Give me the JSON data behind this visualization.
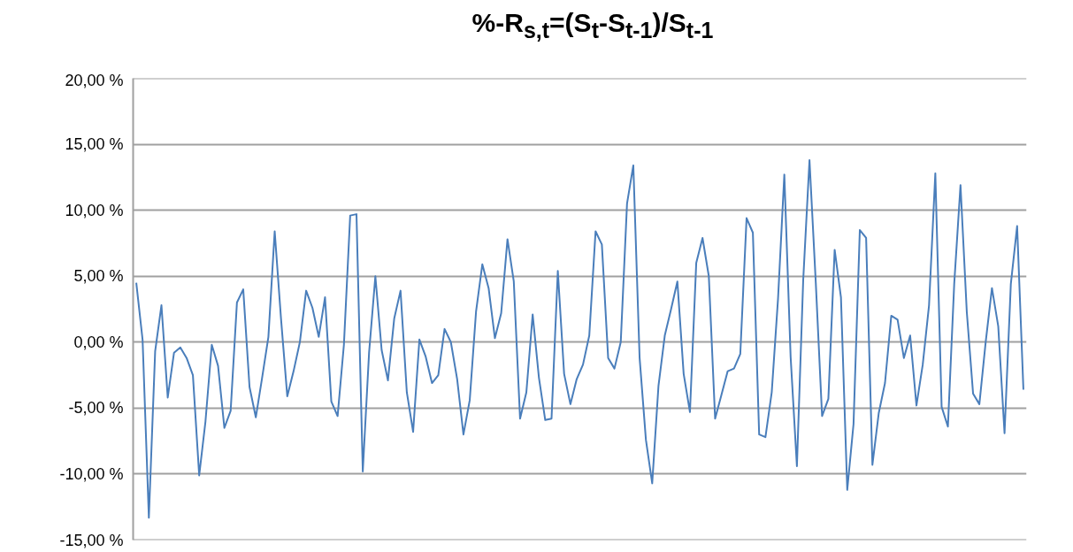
{
  "chart_data": {
    "type": "line",
    "title": "%-R$_{s,t}$=(S$_{t}$-S$_{t-1}$)/S$_{t-1}$",
    "categories": [
      null,
      null,
      null,
      null,
      null,
      null,
      null,
      null,
      null,
      null,
      null,
      null,
      null,
      null,
      null,
      null,
      null,
      null,
      null,
      null,
      null,
      null,
      null,
      null,
      null,
      null,
      null,
      null,
      null,
      null,
      null,
      null,
      null,
      null,
      null,
      null,
      null,
      null,
      null,
      null,
      null,
      null,
      null,
      null,
      null,
      null,
      null,
      null,
      null,
      null,
      null,
      null,
      null,
      null,
      null,
      null,
      null,
      null,
      null,
      null,
      null,
      null,
      null,
      null,
      null,
      null,
      null,
      null,
      null,
      null,
      null,
      null,
      null,
      null,
      null,
      null,
      null,
      null,
      null,
      null,
      null,
      null,
      null,
      null,
      null,
      null,
      null,
      null,
      null,
      null,
      null,
      null,
      null,
      null,
      null,
      null,
      null,
      null,
      null,
      null,
      null,
      null,
      null,
      null,
      null,
      null,
      null,
      null,
      null,
      null,
      null,
      null,
      null,
      null,
      null,
      null,
      null,
      null,
      null,
      null,
      null,
      null,
      null,
      null,
      null,
      null,
      null,
      null,
      null,
      null,
      null,
      null,
      null,
      null,
      null,
      null,
      null,
      null,
      null,
      null,
      null,
      null
    ],
    "series": [
      {
        "color": "#4a7ebb",
        "values": [
          4.5,
          0.2,
          -13.3,
          -0.7,
          2.8,
          -4.2,
          -0.8,
          -0.4,
          -1.2,
          -2.5,
          -10.1,
          -6.0,
          -0.2,
          -1.8,
          -6.5,
          -5.2,
          3.0,
          4.0,
          -3.4,
          -5.7,
          -2.7,
          0.4,
          8.4,
          1.8,
          -4.1,
          -2.2,
          0.0,
          3.9,
          2.6,
          0.4,
          3.4,
          -4.5,
          -5.6,
          -0.2,
          9.6,
          9.7,
          -9.8,
          -0.8,
          5.0,
          -0.6,
          -2.9,
          1.8,
          3.9,
          -3.8,
          -6.8,
          0.2,
          -1.1,
          -3.1,
          -2.5,
          1.0,
          0.0,
          -2.8,
          -7.0,
          -4.4,
          2.3,
          5.9,
          4.1,
          0.3,
          2.2,
          7.8,
          4.6,
          -5.8,
          -3.8,
          2.1,
          -2.7,
          -5.9,
          -5.8,
          5.4,
          -2.4,
          -4.7,
          -2.8,
          -1.7,
          0.5,
          8.4,
          7.4,
          -1.2,
          -2.0,
          0.0,
          10.5,
          13.4,
          -1.2,
          -7.4,
          -10.7,
          -3.3,
          0.5,
          2.5,
          4.6,
          -2.4,
          -5.3,
          6.0,
          7.9,
          5.0,
          -5.8,
          -4.0,
          -2.2,
          -2.0,
          -0.9,
          9.4,
          8.3,
          -7.0,
          -7.2,
          -3.8,
          3.3,
          12.7,
          -1.1,
          -9.4,
          4.7,
          13.8,
          4.5,
          -5.6,
          -4.3,
          7.0,
          3.4,
          -11.2,
          -6.2,
          8.5,
          7.9,
          -9.3,
          -5.4,
          -3.1,
          2.0,
          1.7,
          -1.2,
          0.5,
          -4.8,
          -1.7,
          2.8,
          12.8,
          -4.9,
          -6.4,
          4.4,
          11.9,
          2.3,
          -3.9,
          -4.7,
          0.0,
          4.1,
          1.2,
          -6.9,
          4.4,
          8.8,
          -3.6
        ]
      }
    ],
    "ylim": [
      -15,
      20
    ],
    "yticks": [
      {
        "value": -15,
        "label": "-15,00 %"
      },
      {
        "value": -10,
        "label": "-10,00 %"
      },
      {
        "value": -5,
        "label": "-5,00 %"
      },
      {
        "value": 0,
        "label": "0,00 %"
      },
      {
        "value": 5,
        "label": "5,00 %"
      },
      {
        "value": 10,
        "label": "10,00 %"
      },
      {
        "value": 15,
        "label": "15,00 %"
      },
      {
        "value": 20,
        "label": "20,00 %"
      }
    ],
    "grid": "y",
    "line_style": "solid",
    "marker": "none"
  }
}
